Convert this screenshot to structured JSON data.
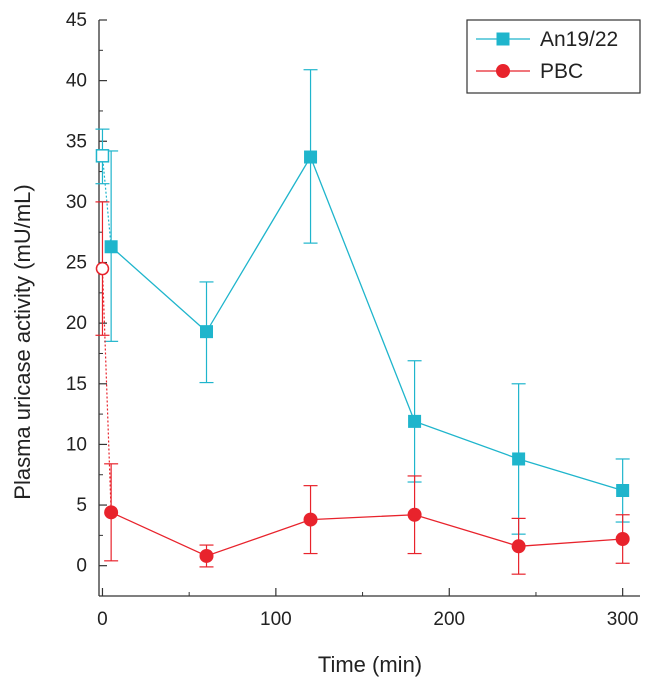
{
  "chart_data": {
    "type": "line",
    "xlabel": "Time (min)",
    "ylabel": "Plasma uricase activity (mU/mL)",
    "xlim": [
      -2,
      310
    ],
    "ylim": [
      -2.5,
      45
    ],
    "xticks": [
      0,
      100,
      200,
      300
    ],
    "yticks": [
      0,
      5,
      10,
      15,
      20,
      25,
      30,
      35,
      40,
      45
    ],
    "legend_position": "top-right",
    "grid": false,
    "series": [
      {
        "name": "An19/22",
        "color": "#1fb5cc",
        "marker": "square",
        "x": [
          5,
          60,
          120,
          180,
          240,
          300
        ],
        "y": [
          26.3,
          19.3,
          33.7,
          11.9,
          8.8,
          6.2
        ],
        "err_low": [
          18.5,
          15.1,
          26.6,
          6.9,
          2.6,
          3.6
        ],
        "err_high": [
          34.2,
          23.4,
          40.9,
          16.9,
          15.0,
          8.8
        ],
        "initial_point": {
          "x": 0,
          "y": 33.8,
          "err_low": 31.5,
          "err_high": 36.0,
          "marker": "open-square",
          "connector": "dotted"
        }
      },
      {
        "name": "PBC",
        "color": "#e8232c",
        "marker": "circle",
        "x": [
          5,
          60,
          120,
          180,
          240,
          300
        ],
        "y": [
          4.4,
          0.8,
          3.8,
          4.2,
          1.6,
          2.2
        ],
        "err_low": [
          0.4,
          -0.1,
          1.0,
          1.0,
          -0.7,
          0.2
        ],
        "err_high": [
          8.4,
          1.7,
          6.6,
          7.4,
          3.9,
          4.2
        ],
        "initial_point": {
          "x": 0,
          "y": 24.5,
          "err_low": 19.0,
          "err_high": 30.0,
          "marker": "open-circle",
          "connector": "dotted"
        }
      }
    ]
  }
}
